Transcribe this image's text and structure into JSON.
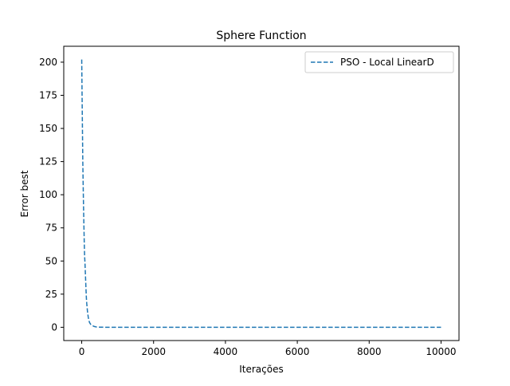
{
  "chart_data": {
    "type": "line",
    "title": "Sphere Function",
    "xlabel": "Iterações",
    "ylabel": "Error best",
    "xlim": [
      -500,
      10500
    ],
    "ylim": [
      -10,
      212
    ],
    "xticks": [
      0,
      2000,
      4000,
      6000,
      8000,
      10000
    ],
    "yticks": [
      0,
      25,
      50,
      75,
      100,
      125,
      150,
      175,
      200
    ],
    "grid": false,
    "legend_position": "top-right",
    "series": [
      {
        "name": "PSO - Local LinearD",
        "color": "#1f77b4",
        "line_style": "dashed",
        "x": [
          0,
          10,
          20,
          30,
          40,
          50,
          60,
          70,
          80,
          90,
          100,
          110,
          120,
          130,
          140,
          150,
          160,
          170,
          180,
          190,
          200,
          220,
          250,
          300,
          350,
          400,
          500,
          700,
          1000,
          2000,
          4000,
          6000,
          8000,
          10000
        ],
        "y": [
          202,
          175,
          150,
          125,
          108,
          92,
          78,
          65,
          54,
          49,
          42,
          35,
          28,
          22,
          18,
          15,
          12,
          10,
          8,
          6.5,
          5,
          3.5,
          2.2,
          1.2,
          0.6,
          0.3,
          0.1,
          0.02,
          0,
          0,
          0,
          0,
          0,
          0
        ]
      }
    ]
  }
}
